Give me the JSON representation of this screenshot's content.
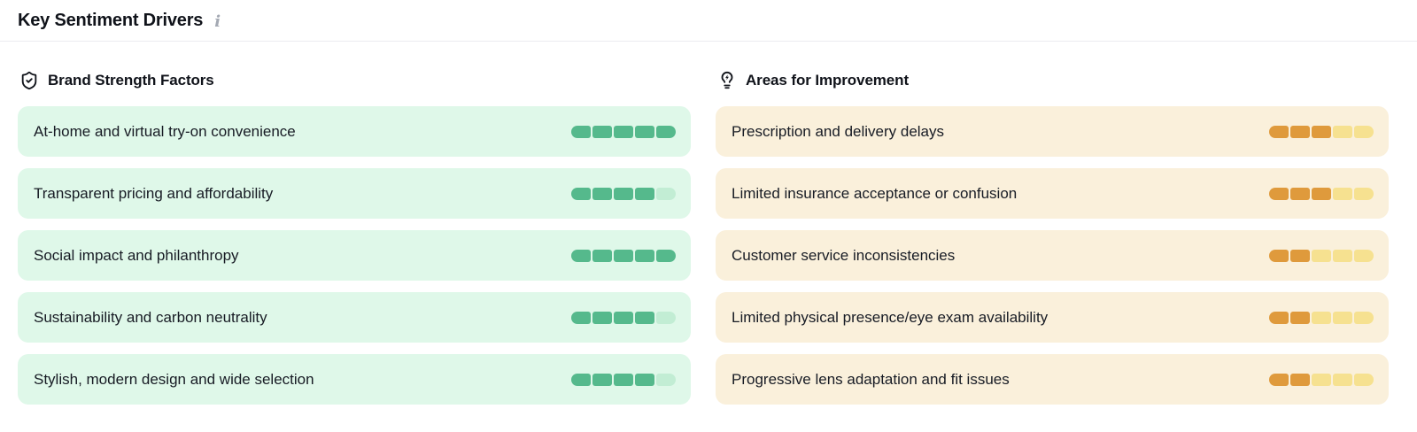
{
  "panel": {
    "title": "Key Sentiment Drivers",
    "info_icon": "info-icon"
  },
  "columns": [
    {
      "id": "brand-strength-factors",
      "icon": "shield-check-icon",
      "title": "Brand Strength Factors",
      "colors": {
        "item_bg": "#dff8e9",
        "bar_filled": "#55b98c",
        "bar_unfilled": "#c2edd4"
      },
      "items": [
        {
          "label": "At-home and virtual try-on convenience",
          "score": 5,
          "max": 5
        },
        {
          "label": "Transparent pricing and affordability",
          "score": 4,
          "max": 5
        },
        {
          "label": "Social impact and philanthropy",
          "score": 5,
          "max": 5
        },
        {
          "label": "Sustainability and carbon neutrality",
          "score": 4,
          "max": 5
        },
        {
          "label": "Stylish, modern design and wide selection",
          "score": 4,
          "max": 5
        }
      ]
    },
    {
      "id": "areas-for-improvement",
      "icon": "lightbulb-zap-icon",
      "title": "Areas for Improvement",
      "colors": {
        "item_bg": "#faf0db",
        "bar_filled": "#df9a3c",
        "bar_unfilled": "#f6e190"
      },
      "items": [
        {
          "label": "Prescription and delivery delays",
          "score": 3,
          "max": 5
        },
        {
          "label": "Limited insurance acceptance or confusion",
          "score": 3,
          "max": 5
        },
        {
          "label": "Customer service inconsistencies",
          "score": 2,
          "max": 5
        },
        {
          "label": "Limited physical presence/eye exam availability",
          "score": 2,
          "max": 5
        },
        {
          "label": "Progressive lens adaptation and fit issues",
          "score": 2,
          "max": 5
        }
      ]
    }
  ]
}
